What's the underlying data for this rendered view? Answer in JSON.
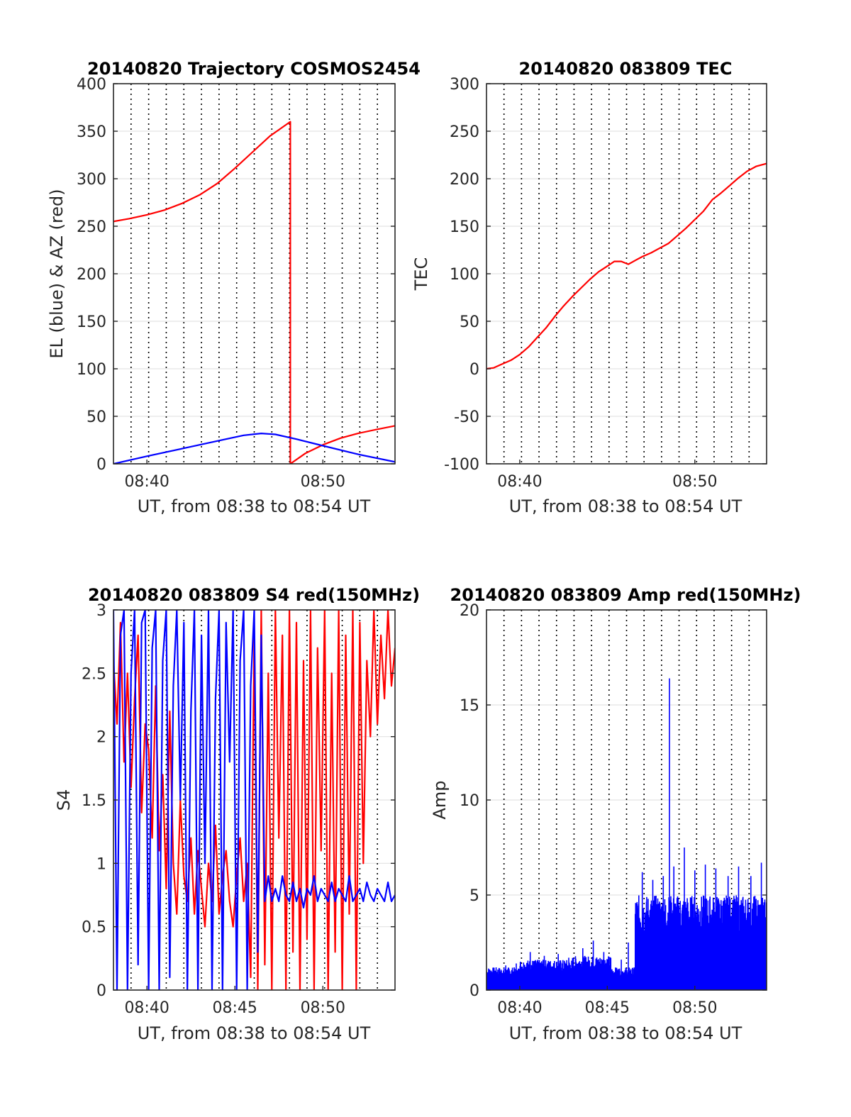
{
  "chart_data": [
    {
      "type": "line",
      "title": "20140820 Trajectory COSMOS2454",
      "xlabel": "UT, from 08:38 to 08:54 UT",
      "ylabel": "EL (blue) & AZ (red)",
      "x_unit": "minutes of hour 08 (UT)",
      "xlim": [
        38.1,
        54.1
      ],
      "ylim": [
        0,
        400
      ],
      "yticks": [
        0,
        50,
        100,
        150,
        200,
        250,
        300,
        350,
        400
      ],
      "xticks": [
        {
          "value": 40,
          "label": "08:40"
        },
        {
          "value": 50,
          "label": "08:50"
        }
      ],
      "vertical_dotted_lines": [
        39.1,
        40.1,
        41.1,
        42.1,
        43.1,
        44.1,
        45.1,
        46.1,
        47.1,
        48.1,
        49.1,
        50.1,
        51.1,
        52.1,
        53.1
      ],
      "grid": true,
      "series": [
        {
          "color": "#ff0000",
          "x": [
            38.1,
            39,
            40,
            41,
            42,
            43,
            44,
            45,
            46,
            47,
            48.15,
            48.15,
            49,
            50,
            51,
            52,
            53,
            54.1
          ],
          "y": [
            255,
            258,
            262,
            267,
            274,
            283,
            295,
            311,
            328,
            345,
            360,
            0,
            11,
            20,
            27,
            32,
            36,
            40
          ]
        },
        {
          "color": "#0000ff",
          "x": [
            38.1,
            40,
            42,
            44,
            45.5,
            46.5,
            47.3,
            48.5,
            50,
            52,
            54.1
          ],
          "y": [
            0,
            8,
            16,
            24,
            30,
            32,
            31,
            26,
            19,
            10,
            2
          ]
        }
      ]
    },
    {
      "type": "line",
      "title": "20140820 083809 TEC",
      "xlabel": "UT, from 08:38 to 08:54 UT",
      "ylabel": "TEC",
      "x_unit": "minutes of hour 08 (UT)",
      "xlim": [
        38.1,
        54.1
      ],
      "ylim": [
        -100,
        300
      ],
      "yticks": [
        -100,
        -50,
        0,
        50,
        100,
        150,
        200,
        250,
        300
      ],
      "xticks": [
        {
          "value": 40,
          "label": "08:40"
        },
        {
          "value": 50,
          "label": "08:50"
        }
      ],
      "vertical_dotted_lines": [
        39.1,
        40.1,
        41.1,
        42.1,
        43.1,
        44.1,
        45.1,
        46.1,
        47.1,
        48.1,
        49.1,
        50.1,
        51.1,
        52.1,
        53.1
      ],
      "grid": true,
      "series": [
        {
          "color": "#ff0000",
          "x": [
            38.1,
            38.5,
            39,
            39.5,
            40,
            40.5,
            41,
            41.5,
            42,
            42.5,
            43,
            43.5,
            44,
            44.5,
            45,
            45.4,
            45.8,
            46.2,
            46.6,
            47,
            47.5,
            48,
            48.5,
            49,
            49.5,
            50,
            50.5,
            51,
            51.5,
            52,
            52.5,
            53,
            53.5,
            54.1
          ],
          "y": [
            0,
            1,
            5,
            9,
            15,
            23,
            33,
            43,
            55,
            66,
            76,
            85,
            94,
            102,
            108,
            113,
            113,
            110,
            114,
            118,
            122,
            127,
            132,
            140,
            148,
            157,
            166,
            178,
            185,
            193,
            201,
            208,
            213,
            216
          ]
        }
      ]
    },
    {
      "type": "line",
      "title": "20140820 083809 S4 red(150MHz)",
      "xlabel": "UT, from 08:38 to 08:54 UT",
      "ylabel": "S4",
      "x_unit": "minutes of hour 08 (UT)",
      "xlim": [
        38.1,
        54.1
      ],
      "ylim": [
        0,
        3
      ],
      "yticks": [
        0,
        0.5,
        1,
        1.5,
        2,
        2.5,
        3
      ],
      "ytick_labels": [
        "0",
        "0.5",
        "1",
        "1.5",
        "2",
        "2.5",
        "3"
      ],
      "xticks": [
        {
          "value": 40,
          "label": "08:40"
        },
        {
          "value": 45,
          "label": "08:45"
        },
        {
          "value": 50,
          "label": "08:50"
        }
      ],
      "vertical_dotted_lines": [
        39.1,
        40.1,
        41.1,
        42.1,
        43.1,
        44.1,
        45.1,
        46.1,
        47.1,
        48.1,
        49.1,
        50.1,
        51.1,
        52.1,
        53.1
      ],
      "grid": true,
      "series": [
        {
          "color": "#ff0000",
          "x": [
            38.1,
            38.3,
            38.5,
            38.7,
            38.9,
            39.1,
            39.3,
            39.5,
            39.7,
            39.9,
            40.1,
            40.3,
            40.5,
            40.7,
            40.9,
            41.1,
            41.3,
            41.5,
            41.7,
            41.9,
            42.1,
            42.3,
            42.5,
            42.7,
            42.9,
            43.1,
            43.3,
            43.5,
            43.7,
            43.9,
            44.1,
            44.3,
            44.5,
            44.7,
            44.9,
            45.1,
            45.3,
            45.5,
            45.7,
            45.9,
            46.1,
            46.3,
            46.5,
            46.7,
            46.9,
            47.1,
            47.3,
            47.5,
            47.7,
            47.9,
            48.1,
            48.3,
            48.5,
            48.7,
            48.9,
            49.1,
            49.3,
            49.5,
            49.7,
            49.9,
            50.1,
            50.3,
            50.5,
            50.7,
            50.9,
            51.1,
            51.3,
            51.5,
            51.7,
            51.9,
            52.1,
            52.3,
            52.5,
            52.7,
            52.9,
            53.1,
            53.3,
            53.5,
            53.7,
            53.9,
            54.1
          ],
          "y": [
            2.6,
            2.1,
            2.9,
            1.8,
            2.5,
            1.6,
            2.3,
            2.8,
            1.4,
            2.1,
            1.9,
            1.2,
            2.4,
            1.1,
            1.7,
            0.8,
            2.2,
            1.0,
            0.6,
            1.5,
            0.9,
            0.7,
            1.2,
            0.6,
            1.1,
            0.8,
            0.5,
            1.0,
            0.7,
            1.3,
            0.6,
            0.9,
            1.1,
            0.7,
            0.5,
            0.9,
            1.2,
            0.7,
            1.0,
            0.1,
            2.8,
            0.0,
            3.0,
            0.2,
            2.5,
            0.0,
            3.0,
            1.2,
            2.8,
            0.0,
            3.0,
            0.3,
            2.9,
            0.0,
            2.6,
            0.4,
            3.0,
            0.0,
            2.7,
            1.1,
            3.0,
            0.0,
            2.5,
            0.3,
            3.0,
            0.0,
            2.8,
            0.6,
            3.0,
            0.0,
            2.9,
            1.0,
            2.6,
            2.0,
            3.0,
            2.1,
            2.8,
            2.3,
            3.0,
            2.4,
            2.7
          ]
        },
        {
          "color": "#0000ff",
          "x": [
            38.1,
            38.3,
            38.5,
            38.7,
            38.9,
            39.1,
            39.3,
            39.5,
            39.7,
            39.9,
            40.1,
            40.3,
            40.5,
            40.7,
            40.9,
            41.1,
            41.3,
            41.5,
            41.7,
            41.9,
            42.1,
            42.3,
            42.5,
            42.7,
            42.9,
            43.1,
            43.3,
            43.5,
            43.7,
            43.9,
            44.1,
            44.3,
            44.5,
            44.7,
            44.9,
            45.1,
            45.3,
            45.5,
            45.7,
            45.9,
            46.1,
            46.3,
            46.5,
            46.7,
            46.9,
            47.1,
            47.3,
            47.5,
            47.7,
            47.9,
            48.1,
            48.3,
            48.5,
            48.7,
            48.9,
            49.1,
            49.3,
            49.5,
            49.7,
            49.9,
            50.1,
            50.3,
            50.5,
            50.7,
            50.9,
            51.1,
            51.3,
            51.5,
            51.7,
            51.9,
            52.1,
            52.3,
            52.5,
            52.7,
            52.9,
            53.1,
            53.3,
            53.5,
            53.7,
            53.9,
            54.1
          ],
          "y": [
            3.0,
            0.0,
            2.8,
            3.0,
            0.0,
            2.5,
            3.0,
            0.2,
            2.9,
            3.0,
            0.0,
            2.7,
            3.0,
            0.0,
            2.6,
            3.0,
            0.1,
            2.4,
            3.0,
            1.5,
            2.9,
            0.0,
            2.2,
            3.0,
            0.0,
            2.8,
            1.0,
            3.0,
            0.0,
            2.3,
            3.0,
            0.0,
            2.9,
            1.8,
            3.0,
            0.0,
            2.6,
            3.0,
            0.0,
            2.4,
            3.0,
            0.3,
            2.8,
            0.7,
            0.9,
            0.7,
            0.8,
            0.7,
            0.9,
            0.75,
            0.7,
            0.85,
            0.7,
            0.8,
            0.65,
            0.8,
            0.75,
            0.9,
            0.7,
            0.8,
            0.75,
            0.7,
            0.85,
            0.7,
            0.8,
            0.75,
            0.7,
            0.9,
            0.7,
            0.75,
            0.8,
            0.7,
            0.85,
            0.75,
            0.7,
            0.8,
            0.75,
            0.7,
            0.85,
            0.7,
            0.75
          ]
        }
      ]
    },
    {
      "type": "line",
      "title": "20140820 083809 Amp red(150MHz)",
      "xlabel": "UT, from 08:38 to 08:54 UT",
      "ylabel": "Amp",
      "x_unit": "minutes of hour 08 (UT)",
      "xlim": [
        38.1,
        54.1
      ],
      "ylim": [
        0,
        20
      ],
      "yticks": [
        0,
        5,
        10,
        15,
        20
      ],
      "xticks": [
        {
          "value": 40,
          "label": "08:40"
        },
        {
          "value": 45,
          "label": "08:45"
        },
        {
          "value": 50,
          "label": "08:50"
        }
      ],
      "vertical_dotted_lines": [
        39.1,
        40.1,
        41.1,
        42.1,
        43.1,
        44.1,
        45.1,
        46.1,
        47.1,
        48.1,
        49.1,
        50.1,
        51.1,
        52.1,
        53.1
      ],
      "grid": true,
      "series": [
        {
          "color": "#0000ff",
          "segments": [
            {
              "x_from": 38.1,
              "x_to": 40.0,
              "low": 0,
              "high": 1.2,
              "peaks": [
                [
                  38.5,
                  1.1
                ],
                [
                  39.2,
                  1.3
                ],
                [
                  39.8,
                  1.4
                ]
              ]
            },
            {
              "x_from": 40.0,
              "x_to": 43.0,
              "low": 0,
              "high": 1.6,
              "peaks": [
                [
                  40.6,
                  2.0
                ],
                [
                  41.4,
                  1.8
                ],
                [
                  42.2,
                  1.9
                ],
                [
                  42.8,
                  1.7
                ]
              ]
            },
            {
              "x_from": 43.0,
              "x_to": 45.2,
              "low": 0,
              "high": 1.8,
              "peaks": [
                [
                  43.6,
                  2.2
                ],
                [
                  44.2,
                  2.6
                ],
                [
                  44.8,
                  2.0
                ]
              ]
            },
            {
              "x_from": 45.2,
              "x_to": 46.6,
              "low": 0,
              "high": 1.2,
              "peaks": [
                [
                  45.8,
                  1.6
                ],
                [
                  46.2,
                  2.5
                ]
              ]
            },
            {
              "x_from": 46.6,
              "x_to": 54.1,
              "low": 0,
              "high": 5.0,
              "peaks": [
                [
                  47.0,
                  6.2
                ],
                [
                  47.6,
                  5.8
                ],
                [
                  48.2,
                  6.0
                ],
                [
                  48.55,
                  16.4
                ],
                [
                  48.8,
                  6.5
                ],
                [
                  49.4,
                  7.5
                ],
                [
                  50.0,
                  6.3
                ],
                [
                  50.6,
                  6.6
                ],
                [
                  51.2,
                  6.4
                ],
                [
                  51.9,
                  6.0
                ],
                [
                  52.5,
                  6.5
                ],
                [
                  53.2,
                  6.0
                ],
                [
                  53.8,
                  6.7
                ]
              ]
            }
          ]
        }
      ]
    }
  ]
}
